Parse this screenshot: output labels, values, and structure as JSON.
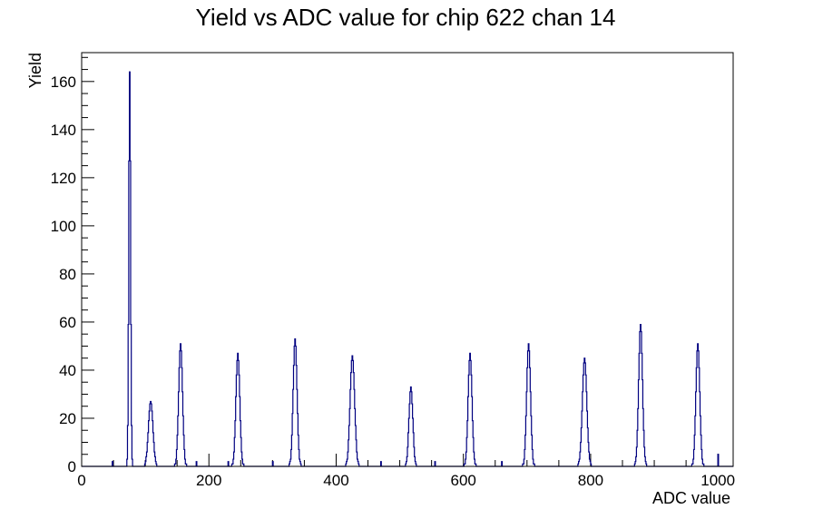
{
  "chart_data": {
    "type": "bar",
    "title": "Yield vs ADC value for chip 622 chan 14",
    "xlabel": "ADC value",
    "ylabel": "Yield",
    "xlim": [
      0,
      1024
    ],
    "ylim": [
      0,
      172
    ],
    "x_ticks": [
      0,
      200,
      400,
      600,
      800,
      1000
    ],
    "y_ticks": [
      0,
      20,
      40,
      60,
      80,
      100,
      120,
      140,
      160
    ],
    "grid": false,
    "bin_width": 1,
    "line_color": "#000080",
    "peaks": [
      {
        "center": 75,
        "sigma": 1.4,
        "height": 164
      },
      {
        "center": 108,
        "sigma": 3.5,
        "height": 27
      },
      {
        "center": 155,
        "sigma": 3.0,
        "height": 51
      },
      {
        "center": 245,
        "sigma": 3.0,
        "height": 47
      },
      {
        "center": 335,
        "sigma": 3.0,
        "height": 53
      },
      {
        "center": 425,
        "sigma": 3.5,
        "height": 46
      },
      {
        "center": 517,
        "sigma": 3.0,
        "height": 33
      },
      {
        "center": 610,
        "sigma": 3.0,
        "height": 47
      },
      {
        "center": 702,
        "sigma": 3.0,
        "height": 51
      },
      {
        "center": 790,
        "sigma": 3.5,
        "height": 45
      },
      {
        "center": 878,
        "sigma": 3.0,
        "height": 59
      },
      {
        "center": 968,
        "sigma": 3.0,
        "height": 51
      }
    ],
    "isolated_counts": [
      {
        "x": 48,
        "y": 2
      },
      {
        "x": 180,
        "y": 2
      },
      {
        "x": 230,
        "y": 2
      },
      {
        "x": 300,
        "y": 2
      },
      {
        "x": 470,
        "y": 2
      },
      {
        "x": 555,
        "y": 2
      },
      {
        "x": 660,
        "y": 2
      },
      {
        "x": 1000,
        "y": 5
      }
    ]
  }
}
